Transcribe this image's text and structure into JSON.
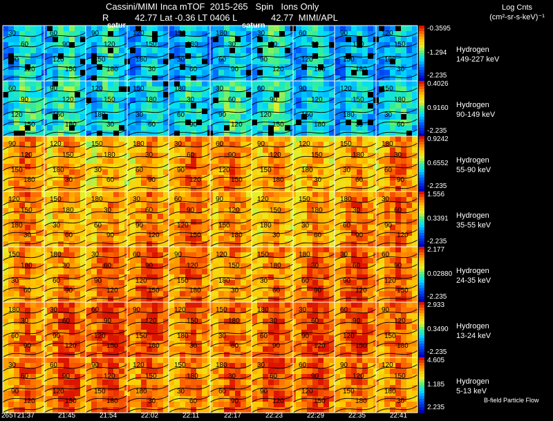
{
  "header": {
    "line1": "Cassini/MIMI Inca mTOF  2015-265   Spin   Ions Only",
    "line2_left": "R",
    "line2_mid": "42.77 Lat -0.36 LT 0406 L",
    "line2_right": "42.77  MIMI/APL",
    "overlay_left": "satur",
    "overlay_right": "saturn"
  },
  "legend": {
    "title_line1": "Log Cnts",
    "title_line2": "(cm²-sr-s-keV)⁻¹",
    "footer": "B-field Particle Flow"
  },
  "colors": {
    "background": "#000000",
    "grid_line": "#ffffff",
    "contour": "#000000"
  },
  "chart_data": {
    "type": "heatmap",
    "title": "Cassini/MIMI Inca mTOF  2015-265   Spin   Ions Only",
    "colormap": "rainbow",
    "time_labels": [
      "265T21:37",
      "21:45",
      "21:54",
      "22:02",
      "22:11",
      "22:17",
      "22:23",
      "22:29",
      "22:35",
      "22:41"
    ],
    "contour_levels": [
      "30",
      "60",
      "90",
      "120",
      "150",
      "180"
    ],
    "bands": [
      {
        "species": "Hydrogen",
        "energy": "149-227 keV",
        "cbar_max": "-0.3595",
        "cbar_mid": "-1.294",
        "cbar_min": "-2.235",
        "level": 0.35
      },
      {
        "species": "Hydrogen",
        "energy": "90-149 keV",
        "cbar_max": "0.4026",
        "cbar_mid": "0.9160",
        "cbar_min": "-2.235",
        "level": 0.4
      },
      {
        "species": "Hydrogen",
        "energy": "55-90 keV",
        "cbar_max": "0.9242",
        "cbar_mid": "0.6552",
        "cbar_min": "-2.235",
        "level": 0.78
      },
      {
        "species": "Hydrogen",
        "energy": "35-55 keV",
        "cbar_max": "1.556",
        "cbar_mid": "0.3391",
        "cbar_min": "-2.235",
        "level": 0.8
      },
      {
        "species": "Hydrogen",
        "energy": "24-35 keV",
        "cbar_max": "2.177",
        "cbar_mid": "0.02880",
        "cbar_min": "-2.235",
        "level": 0.84
      },
      {
        "species": "Hydrogen",
        "energy": "13-24 keV",
        "cbar_max": "2.933",
        "cbar_mid": "0.3490",
        "cbar_min": "-2.235",
        "level": 0.88
      },
      {
        "species": "Hydrogen",
        "energy": "5-13 keV",
        "cbar_max": "4.605",
        "cbar_mid": "1.185",
        "cbar_min": "2.235",
        "level": 0.86
      }
    ]
  }
}
